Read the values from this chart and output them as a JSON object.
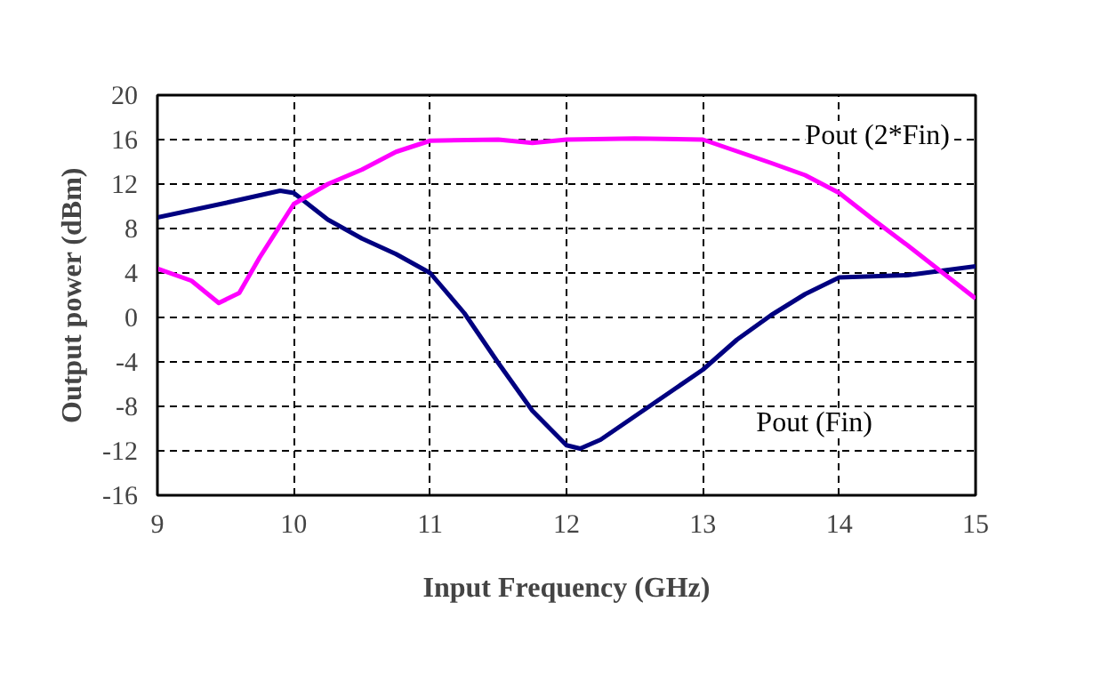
{
  "chart_data": {
    "type": "line",
    "xlabel": "Input Frequency (GHz)",
    "ylabel": "Output power (dBm)",
    "xlim": [
      9,
      15
    ],
    "xticks": [
      9,
      10,
      11,
      12,
      13,
      14,
      15
    ],
    "ylim": [
      -16,
      20
    ],
    "yticks": [
      -16,
      -12,
      -8,
      -4,
      0,
      4,
      8,
      12,
      16,
      20
    ],
    "grid": true,
    "legend": false,
    "series": [
      {
        "name": "Pout (Fin)",
        "color": "#000080",
        "x": [
          9,
          9.5,
          9.9,
          10,
          10.25,
          10.5,
          10.75,
          11,
          11.25,
          11.5,
          11.75,
          12,
          12.1,
          12.25,
          12.5,
          12.75,
          13,
          13.25,
          13.5,
          13.75,
          14,
          14.5,
          15
        ],
        "values": [
          9,
          10.3,
          11.4,
          11.2,
          8.8,
          7.1,
          5.7,
          4,
          0.4,
          -4.1,
          -8.4,
          -11.5,
          -11.8,
          -11,
          -8.9,
          -6.8,
          -4.7,
          -2,
          0.2,
          2.1,
          3.6,
          3.8,
          4.6
        ]
      },
      {
        "name": "Pout (2*Fin)",
        "color": "#ff00ff",
        "x": [
          9,
          9.25,
          9.45,
          9.6,
          9.75,
          10,
          10.25,
          10.5,
          10.75,
          11,
          11.5,
          11.75,
          12,
          12.5,
          13,
          13.5,
          13.75,
          14,
          14.25,
          14.5,
          14.75,
          15
        ],
        "values": [
          4.4,
          3.3,
          1.3,
          2.2,
          5.4,
          10.2,
          12,
          13.3,
          14.9,
          15.9,
          16,
          15.7,
          16,
          16.1,
          16,
          13.9,
          12.8,
          11.2,
          8.8,
          6.5,
          4.1,
          1.7
        ]
      }
    ]
  }
}
